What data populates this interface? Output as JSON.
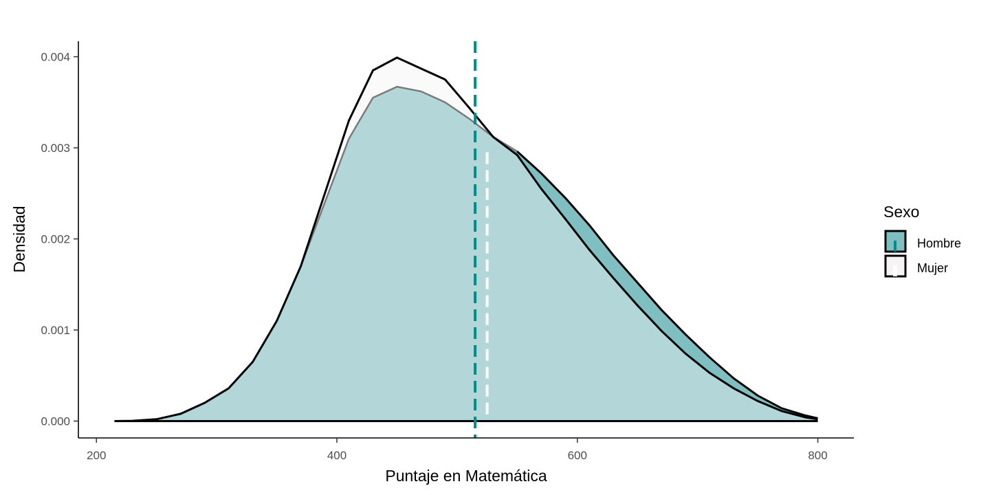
{
  "chart_data": {
    "type": "area",
    "title": "",
    "xlabel": "Puntaje en Matemática",
    "ylabel": "Densidad",
    "xlim": [
      185,
      830
    ],
    "ylim": [
      -0.000185,
      0.00417
    ],
    "x_ticks": [
      200,
      400,
      600,
      800
    ],
    "x_tick_labels": [
      "200",
      "400",
      "600",
      "800"
    ],
    "y_ticks": [
      0,
      0.001,
      0.002,
      0.003,
      0.004
    ],
    "y_tick_labels": [
      "0.000",
      "0.001",
      "0.002",
      "0.003",
      "0.004"
    ],
    "grid": false,
    "legend": {
      "title": "Sexo",
      "position": "right",
      "entries": [
        "Hombre",
        "Mujer"
      ]
    },
    "colors": {
      "Hombre_fill": "#7fbfc2",
      "Mujer_fill": "#f5f3f4",
      "Hombre_mean_line": "#008b8b",
      "Mujer_mean_line": "#ffffff",
      "outline": "#000000",
      "overlap_outline": "#7a7a7a"
    },
    "series": [
      {
        "name": "Hombre",
        "mean": 515,
        "points": [
          [
            215,
            0
          ],
          [
            230,
            3e-06
          ],
          [
            250,
            2e-05
          ],
          [
            270,
            8e-05
          ],
          [
            290,
            0.0002
          ],
          [
            310,
            0.00036
          ],
          [
            330,
            0.00065
          ],
          [
            350,
            0.0011
          ],
          [
            370,
            0.0017
          ],
          [
            390,
            0.0024
          ],
          [
            410,
            0.0031
          ],
          [
            430,
            0.00355
          ],
          [
            450,
            0.00367
          ],
          [
            470,
            0.00362
          ],
          [
            490,
            0.0035
          ],
          [
            510,
            0.00332
          ],
          [
            530,
            0.00312
          ],
          [
            550,
            0.00296
          ],
          [
            570,
            0.00272
          ],
          [
            590,
            0.00245
          ],
          [
            610,
            0.00215
          ],
          [
            630,
            0.00182
          ],
          [
            650,
            0.00152
          ],
          [
            670,
            0.00122
          ],
          [
            690,
            0.00095
          ],
          [
            710,
            0.0007
          ],
          [
            730,
            0.00047
          ],
          [
            750,
            0.00028
          ],
          [
            770,
            0.00014
          ],
          [
            790,
            6e-05
          ],
          [
            800,
            3e-05
          ]
        ]
      },
      {
        "name": "Mujer",
        "mean": 525,
        "points": [
          [
            215,
            0
          ],
          [
            230,
            3e-06
          ],
          [
            250,
            2e-05
          ],
          [
            270,
            8e-05
          ],
          [
            290,
            0.0002
          ],
          [
            310,
            0.00036
          ],
          [
            330,
            0.00065
          ],
          [
            350,
            0.0011
          ],
          [
            370,
            0.0017
          ],
          [
            390,
            0.0025
          ],
          [
            410,
            0.0033
          ],
          [
            430,
            0.00385
          ],
          [
            450,
            0.00399
          ],
          [
            460,
            0.00393
          ],
          [
            470,
            0.00387
          ],
          [
            490,
            0.00375
          ],
          [
            510,
            0.00344
          ],
          [
            530,
            0.00312
          ],
          [
            550,
            0.00292
          ],
          [
            570,
            0.00255
          ],
          [
            590,
            0.00222
          ],
          [
            610,
            0.00188
          ],
          [
            630,
            0.00157
          ],
          [
            650,
            0.00127
          ],
          [
            670,
            0.00099
          ],
          [
            690,
            0.00074
          ],
          [
            710,
            0.00053
          ],
          [
            730,
            0.00036
          ],
          [
            750,
            0.00022
          ],
          [
            770,
            0.00011
          ],
          [
            790,
            4e-05
          ],
          [
            800,
            2e-05
          ]
        ]
      }
    ]
  }
}
